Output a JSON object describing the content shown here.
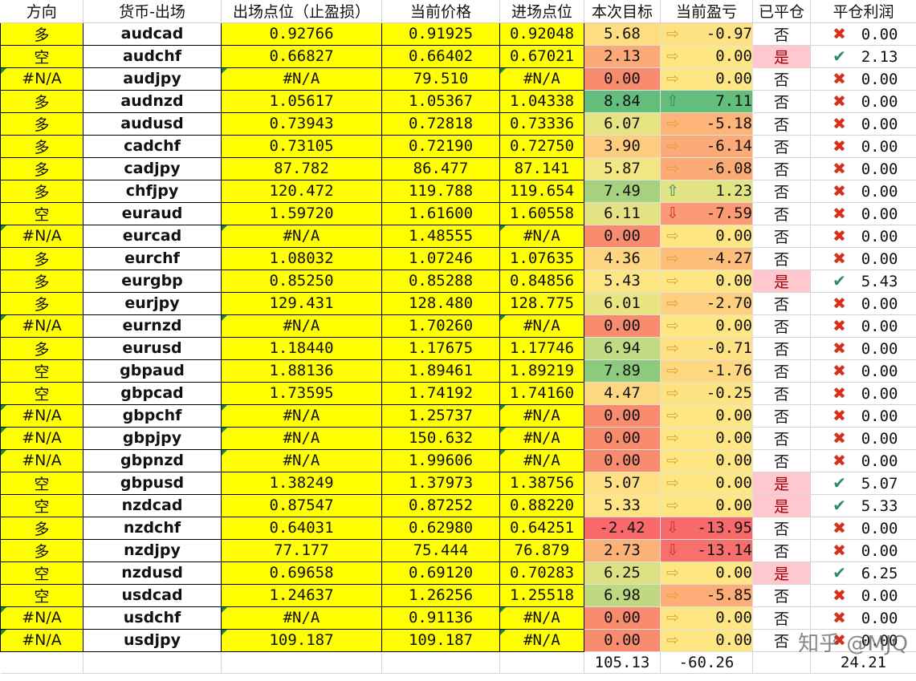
{
  "headers": [
    "方向",
    "货币-出场",
    "出场点位（止盈损）",
    "当前价格",
    "进场点位",
    "本次目标",
    "当前盈亏",
    "已平仓",
    "平仓利润"
  ],
  "colors": {
    "yellow": "#ffff00",
    "pink": "#ffc7ce",
    "arrow_up": "#2e8b6a",
    "arrow_down": "#d6301e",
    "arrow_side": "#e0a630",
    "check": "#2a8a6a",
    "cross": "#d9301e"
  },
  "icons": {
    "up": "up-arrow-icon",
    "down": "down-arrow-icon",
    "side": "right-arrow-icon",
    "check": "check-icon",
    "cross": "cross-icon"
  },
  "rows": [
    {
      "dir": "多",
      "sym": "audcad",
      "exit": "0.92766",
      "cur": "0.91925",
      "entry": "0.92048",
      "target": "5.68",
      "target_bg": "#fedd81",
      "trend": "side",
      "pl": "-0.97",
      "pl_bg": "#fee182",
      "closed": "否",
      "profit": "0.00"
    },
    {
      "dir": "空",
      "sym": "audchf",
      "exit": "0.66827",
      "cur": "0.66402",
      "entry": "0.67021",
      "target": "2.13",
      "target_bg": "#fbaa77",
      "trend": "side",
      "pl": "0.00",
      "pl_bg": "#fee683",
      "closed": "是",
      "profit": "2.13"
    },
    {
      "dir": "#N/A",
      "dir_err": true,
      "sym": "audjpy",
      "exit": "#N/A",
      "exit_err": true,
      "cur": "79.510",
      "entry": "#N/A",
      "entry_err": true,
      "target": "0.00",
      "target_bg": "#f98b6f",
      "trend": "side",
      "pl": "0.00",
      "pl_bg": "#fee683",
      "closed": "否",
      "profit": "0.00"
    },
    {
      "dir": "多",
      "sym": "audnzd",
      "exit": "1.05617",
      "cur": "1.05367",
      "entry": "1.04338",
      "target": "8.84",
      "target_bg": "#63be7b",
      "trend": "up",
      "pl": "7.11",
      "pl_bg": "#63be7b",
      "closed": "否",
      "profit": "0.00"
    },
    {
      "dir": "多",
      "sym": "audusd",
      "exit": "0.73943",
      "cur": "0.72818",
      "entry": "0.73336",
      "target": "6.07",
      "target_bg": "#e6e383",
      "trend": "side",
      "pl": "-5.18",
      "pl_bg": "#fcb479",
      "closed": "否",
      "profit": "0.00"
    },
    {
      "dir": "多",
      "sym": "cadchf",
      "exit": "0.73105",
      "cur": "0.72190",
      "entry": "0.72750",
      "target": "3.90",
      "target_bg": "#fdcc7e",
      "trend": "side",
      "pl": "-6.14",
      "pl_bg": "#fcaa77",
      "closed": "否",
      "profit": "0.00"
    },
    {
      "dir": "多",
      "sym": "cadjpy",
      "exit": "87.782",
      "cur": "86.477",
      "entry": "87.141",
      "target": "5.87",
      "target_bg": "#f3e784",
      "trend": "side",
      "pl": "-6.08",
      "pl_bg": "#fcab77",
      "closed": "否",
      "profit": "0.00"
    },
    {
      "dir": "多",
      "sym": "chfjpy",
      "exit": "120.472",
      "cur": "119.788",
      "entry": "119.654",
      "target": "7.49",
      "target_bg": "#a6d27f",
      "trend": "up",
      "pl": "1.23",
      "pl_bg": "#e2e383",
      "closed": "否",
      "profit": "0.00"
    },
    {
      "dir": "空",
      "sym": "euraud",
      "exit": "1.59720",
      "cur": "1.61600",
      "entry": "1.60558",
      "target": "6.11",
      "target_bg": "#e4e283",
      "trend": "down",
      "pl": "-7.59",
      "pl_bg": "#fb9a74",
      "closed": "否",
      "profit": "0.00"
    },
    {
      "dir": "#N/A",
      "dir_err": true,
      "sym": "eurcad",
      "exit": "#N/A",
      "exit_err": true,
      "cur": "1.48555",
      "entry": "#N/A",
      "entry_err": true,
      "target": "0.00",
      "target_bg": "#f98b6f",
      "trend": "side",
      "pl": "0.00",
      "pl_bg": "#fee683",
      "closed": "否",
      "profit": "0.00"
    },
    {
      "dir": "多",
      "sym": "eurchf",
      "exit": "1.08032",
      "cur": "1.07246",
      "entry": "1.07635",
      "target": "4.36",
      "target_bg": "#fed580",
      "trend": "side",
      "pl": "-4.27",
      "pl_bg": "#fdbe7b",
      "closed": "否",
      "profit": "0.00"
    },
    {
      "dir": "多",
      "sym": "eurgbp",
      "exit": "0.85250",
      "cur": "0.85288",
      "entry": "0.84856",
      "target": "5.43",
      "target_bg": "#fee583",
      "trend": "side",
      "pl": "0.00",
      "pl_bg": "#fee683",
      "closed": "是",
      "profit": "5.43"
    },
    {
      "dir": "多",
      "sym": "eurjpy",
      "exit": "129.431",
      "cur": "128.480",
      "entry": "128.775",
      "target": "6.01",
      "target_bg": "#eae583",
      "trend": "side",
      "pl": "-2.70",
      "pl_bg": "#fdcf7f",
      "closed": "否",
      "profit": "0.00"
    },
    {
      "dir": "#N/A",
      "dir_err": true,
      "sym": "eurnzd",
      "exit": "#N/A",
      "exit_err": true,
      "cur": "1.70260",
      "entry": "#N/A",
      "entry_err": true,
      "target": "0.00",
      "target_bg": "#f98b6f",
      "trend": "side",
      "pl": "0.00",
      "pl_bg": "#fee683",
      "closed": "否",
      "profit": "0.00"
    },
    {
      "dir": "多",
      "sym": "eurusd",
      "exit": "1.18440",
      "cur": "1.17675",
      "entry": "1.17746",
      "target": "6.94",
      "target_bg": "#c2da81",
      "trend": "side",
      "pl": "-0.71",
      "pl_bg": "#fee182",
      "closed": "否",
      "profit": "0.00"
    },
    {
      "dir": "空",
      "sym": "gbpaud",
      "exit": "1.88136",
      "cur": "1.89461",
      "entry": "1.89219",
      "target": "7.89",
      "target_bg": "#8eca7e",
      "trend": "side",
      "pl": "-1.76",
      "pl_bg": "#fdd880",
      "closed": "否",
      "profit": "0.00"
    },
    {
      "dir": "空",
      "sym": "gbpcad",
      "exit": "1.73595",
      "cur": "1.74192",
      "entry": "1.74160",
      "target": "4.47",
      "target_bg": "#fed881",
      "trend": "side",
      "pl": "-0.25",
      "pl_bg": "#fee383",
      "closed": "否",
      "profit": "0.00"
    },
    {
      "dir": "#N/A",
      "dir_err": true,
      "sym": "gbpchf",
      "exit": "#N/A",
      "exit_err": true,
      "cur": "1.25737",
      "entry": "#N/A",
      "entry_err": true,
      "target": "0.00",
      "target_bg": "#f98b6f",
      "trend": "side",
      "pl": "0.00",
      "pl_bg": "#fee683",
      "closed": "否",
      "profit": "0.00"
    },
    {
      "dir": "#N/A",
      "dir_err": true,
      "sym": "gbpjpy",
      "exit": "#N/A",
      "exit_err": true,
      "cur": "150.632",
      "entry": "#N/A",
      "entry_err": true,
      "target": "0.00",
      "target_bg": "#f98b6f",
      "trend": "side",
      "pl": "0.00",
      "pl_bg": "#fee683",
      "closed": "否",
      "profit": "0.00"
    },
    {
      "dir": "#N/A",
      "dir_err": true,
      "sym": "gbpnzd",
      "exit": "#N/A",
      "exit_err": true,
      "cur": "1.99606",
      "entry": "#N/A",
      "entry_err": true,
      "target": "0.00",
      "target_bg": "#f98b6f",
      "trend": "side",
      "pl": "0.00",
      "pl_bg": "#fee683",
      "closed": "否",
      "profit": "0.00"
    },
    {
      "dir": "空",
      "sym": "gbpusd",
      "exit": "1.38249",
      "cur": "1.37973",
      "entry": "1.38756",
      "target": "5.07",
      "target_bg": "#fee082",
      "trend": "side",
      "pl": "0.00",
      "pl_bg": "#fee683",
      "closed": "是",
      "profit": "5.07"
    },
    {
      "dir": "空",
      "sym": "nzdcad",
      "exit": "0.87547",
      "cur": "0.87252",
      "entry": "0.88220",
      "target": "5.33",
      "target_bg": "#fee483",
      "trend": "side",
      "pl": "0.00",
      "pl_bg": "#fee683",
      "closed": "是",
      "profit": "5.33"
    },
    {
      "dir": "多",
      "sym": "nzdchf",
      "exit": "0.64031",
      "cur": "0.62980",
      "entry": "0.64251",
      "target": "-2.42",
      "target_bg": "#f8696b",
      "trend": "down",
      "pl": "-13.95",
      "pl_bg": "#f8696b",
      "closed": "否",
      "profit": "0.00"
    },
    {
      "dir": "多",
      "sym": "nzdjpy",
      "exit": "77.177",
      "cur": "75.444",
      "entry": "76.879",
      "target": "2.73",
      "target_bg": "#fbb279",
      "trend": "down",
      "pl": "-13.14",
      "pl_bg": "#f8706d",
      "closed": "否",
      "profit": "0.00"
    },
    {
      "dir": "空",
      "sym": "nzdusd",
      "exit": "0.69658",
      "cur": "0.69120",
      "entry": "0.70283",
      "target": "6.25",
      "target_bg": "#dde082",
      "trend": "side",
      "pl": "0.00",
      "pl_bg": "#fee683",
      "closed": "是",
      "profit": "6.25"
    },
    {
      "dir": "空",
      "sym": "usdcad",
      "exit": "1.24637",
      "cur": "1.26256",
      "entry": "1.25518",
      "target": "6.98",
      "target_bg": "#c0d980",
      "trend": "side",
      "pl": "-5.85",
      "pl_bg": "#fcad78",
      "closed": "否",
      "profit": "0.00"
    },
    {
      "dir": "#N/A",
      "dir_err": true,
      "sym": "usdchf",
      "exit": "#N/A",
      "exit_err": true,
      "cur": "0.91136",
      "entry": "#N/A",
      "entry_err": true,
      "target": "0.00",
      "target_bg": "#f98b6f",
      "trend": "side",
      "pl": "0.00",
      "pl_bg": "#fee683",
      "closed": "否",
      "profit": "0.00"
    },
    {
      "dir": "#N/A",
      "dir_err": true,
      "sym": "usdjpy",
      "exit": "109.187",
      "exit_err": true,
      "cur": "109.187",
      "entry": "#N/A",
      "entry_err": true,
      "target": "0.00",
      "target_bg": "#f98b6f",
      "trend": "side",
      "pl": "0.00",
      "pl_bg": "#fee683",
      "closed": "否",
      "profit": "0.00"
    }
  ],
  "totals": {
    "target": "105.13",
    "pl": "-60.26",
    "profit": "24.21"
  },
  "watermark": "知乎 @MJQ"
}
